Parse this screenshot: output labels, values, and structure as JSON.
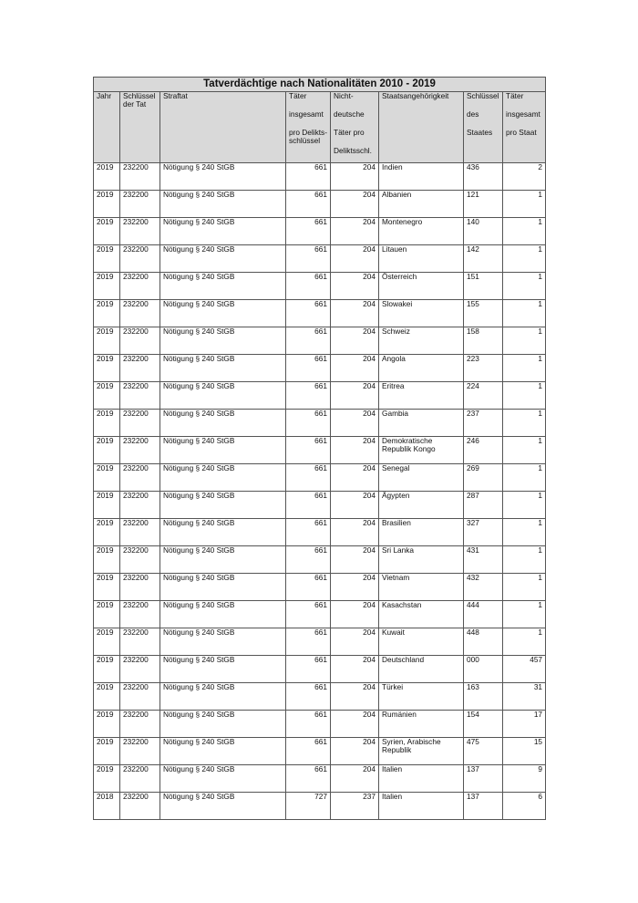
{
  "title": "Tatverdächtige nach Nationalitäten 2010 - 2019",
  "headers": {
    "jahr": "Jahr",
    "schluessel_tat": "Schlüssel der Tat",
    "straftat": "Straftat",
    "taeter_gesamt": [
      "Täter",
      "insgesamt",
      "pro Delikts-schlüssel"
    ],
    "nichtdeutsche": [
      "Nicht-",
      "deutsche",
      "Täter pro",
      "Deliktsschl."
    ],
    "staat": "Staatsangehörigkeit",
    "schluessel_staat": [
      "Schlüssel",
      "des",
      "Staates"
    ],
    "taeter_staat": [
      "Täter",
      "insgesamt",
      "pro Staat"
    ]
  },
  "rows": [
    [
      "2019",
      "232200",
      "Nötigung § 240 StGB",
      "661",
      "204",
      "Indien",
      "436",
      "2"
    ],
    [
      "2019",
      "232200",
      "Nötigung § 240 StGB",
      "661",
      "204",
      "Albanien",
      "121",
      "1"
    ],
    [
      "2019",
      "232200",
      "Nötigung § 240 StGB",
      "661",
      "204",
      "Montenegro",
      "140",
      "1"
    ],
    [
      "2019",
      "232200",
      "Nötigung § 240 StGB",
      "661",
      "204",
      "Litauen",
      "142",
      "1"
    ],
    [
      "2019",
      "232200",
      "Nötigung § 240 StGB",
      "661",
      "204",
      "Österreich",
      "151",
      "1"
    ],
    [
      "2019",
      "232200",
      "Nötigung § 240 StGB",
      "661",
      "204",
      "Slowakei",
      "155",
      "1"
    ],
    [
      "2019",
      "232200",
      "Nötigung § 240 StGB",
      "661",
      "204",
      "Schweiz",
      "158",
      "1"
    ],
    [
      "2019",
      "232200",
      "Nötigung § 240 StGB",
      "661",
      "204",
      "Angola",
      "223",
      "1"
    ],
    [
      "2019",
      "232200",
      "Nötigung § 240 StGB",
      "661",
      "204",
      "Eritrea",
      "224",
      "1"
    ],
    [
      "2019",
      "232200",
      "Nötigung § 240 StGB",
      "661",
      "204",
      "Gambia",
      "237",
      "1"
    ],
    [
      "2019",
      "232200",
      "Nötigung § 240 StGB",
      "661",
      "204",
      "Demokratische Republik Kongo",
      "246",
      "1"
    ],
    [
      "2019",
      "232200",
      "Nötigung § 240 StGB",
      "661",
      "204",
      "Senegal",
      "269",
      "1"
    ],
    [
      "2019",
      "232200",
      "Nötigung § 240 StGB",
      "661",
      "204",
      "Ägypten",
      "287",
      "1"
    ],
    [
      "2019",
      "232200",
      "Nötigung § 240 StGB",
      "661",
      "204",
      "Brasilien",
      "327",
      "1"
    ],
    [
      "2019",
      "232200",
      "Nötigung § 240 StGB",
      "661",
      "204",
      "Sri Lanka",
      "431",
      "1"
    ],
    [
      "2019",
      "232200",
      "Nötigung § 240 StGB",
      "661",
      "204",
      "Vietnam",
      "432",
      "1"
    ],
    [
      "2019",
      "232200",
      "Nötigung § 240 StGB",
      "661",
      "204",
      "Kasachstan",
      "444",
      "1"
    ],
    [
      "2019",
      "232200",
      "Nötigung § 240 StGB",
      "661",
      "204",
      "Kuwait",
      "448",
      "1"
    ],
    [
      "2019",
      "232200",
      "Nötigung § 240 StGB",
      "661",
      "204",
      "Deutschland",
      "000",
      "457"
    ],
    [
      "2019",
      "232200",
      "Nötigung § 240 StGB",
      "661",
      "204",
      "Türkei",
      "163",
      "31"
    ],
    [
      "2019",
      "232200",
      "Nötigung § 240 StGB",
      "661",
      "204",
      "Rumänien",
      "154",
      "17"
    ],
    [
      "2019",
      "232200",
      "Nötigung § 240 StGB",
      "661",
      "204",
      "Syrien, Arabische Republik",
      "475",
      "15"
    ],
    [
      "2019",
      "232200",
      "Nötigung § 240 StGB",
      "661",
      "204",
      "Italien",
      "137",
      "9"
    ],
    [
      "2018",
      "232200",
      "Nötigung § 240 StGB",
      "727",
      "237",
      "Italien",
      "137",
      "6"
    ]
  ]
}
